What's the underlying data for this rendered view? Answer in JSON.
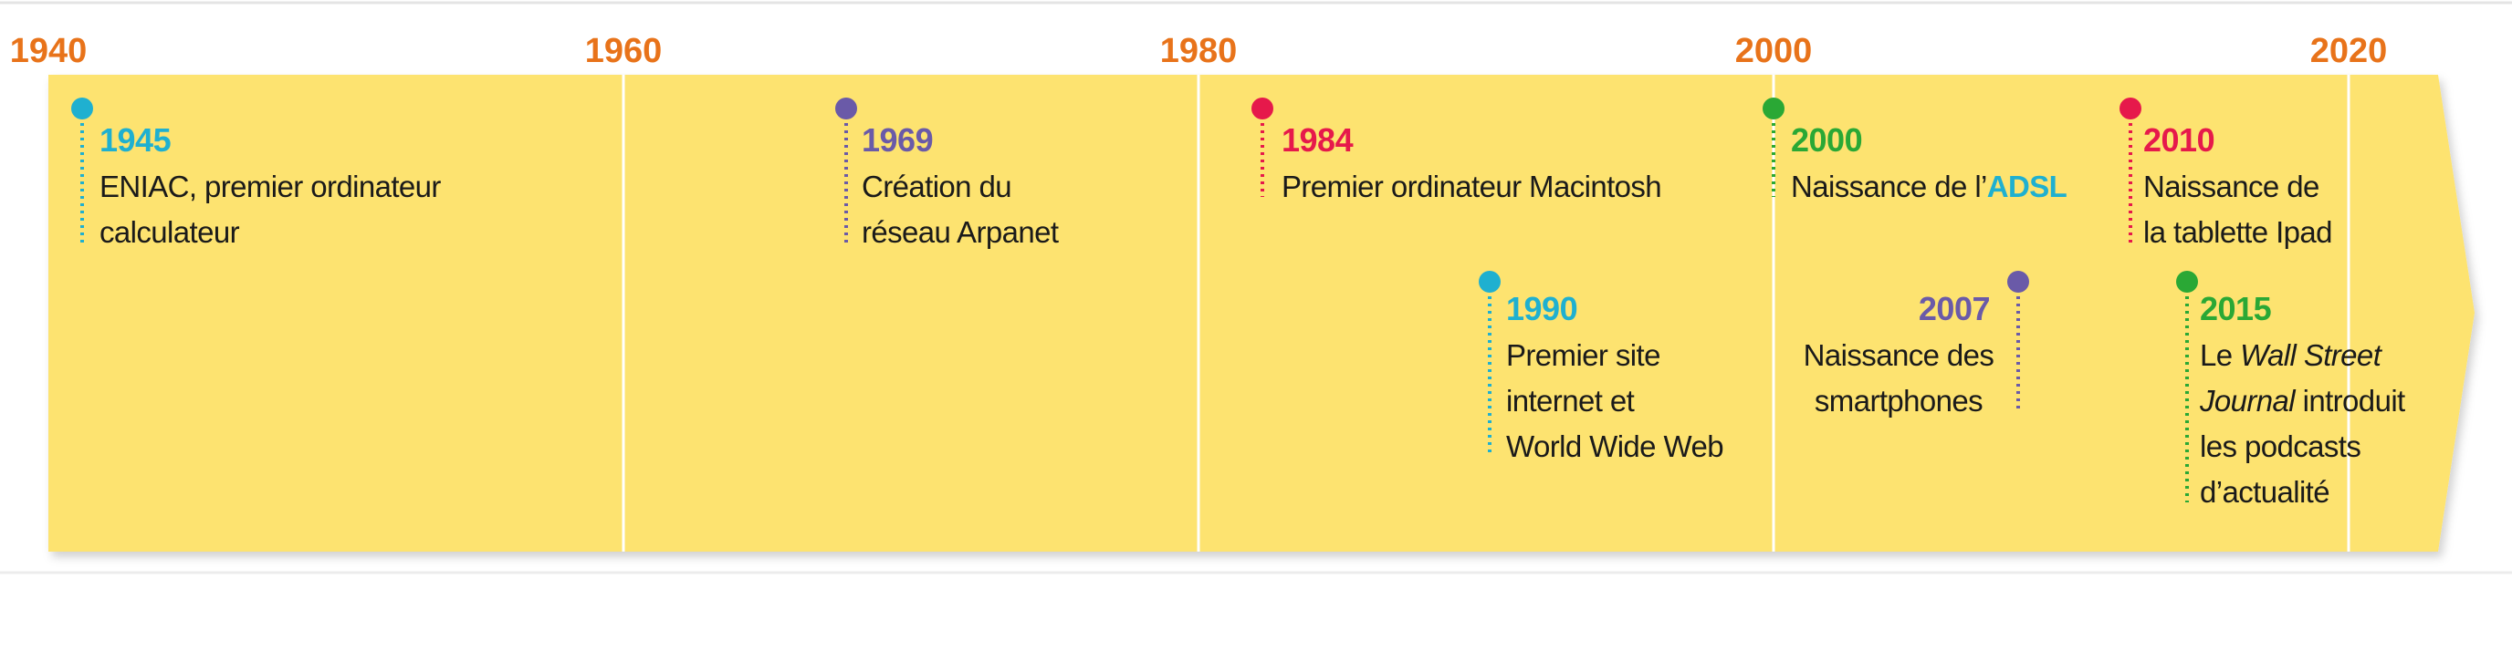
{
  "axis": {
    "years": [
      "1940",
      "1960",
      "1980",
      "2000",
      "2020"
    ]
  },
  "events": [
    {
      "year": "1945",
      "color": "#1fb0d0",
      "lines": [
        [
          {
            "text": "ENIAC, premier ordinateur"
          }
        ],
        [
          {
            "text": "calculateur"
          }
        ]
      ]
    },
    {
      "year": "1969",
      "color": "#6a5aa8",
      "lines": [
        [
          {
            "text": "Création du"
          }
        ],
        [
          {
            "text": "réseau Arpanet"
          }
        ]
      ]
    },
    {
      "year": "1984",
      "color": "#e6194b",
      "lines": [
        [
          {
            "text": "Premier ordinateur Macintosh"
          }
        ]
      ]
    },
    {
      "year": "1990",
      "color": "#1fb0d0",
      "lines": [
        [
          {
            "text": "Premier site"
          }
        ],
        [
          {
            "text": "internet et"
          }
        ],
        [
          {
            "text": "World Wide Web"
          }
        ]
      ]
    },
    {
      "year": "2000",
      "color": "#2aa835",
      "lines": [
        [
          {
            "text": "Naissance de l’"
          },
          {
            "text": "ADSL",
            "color": "#1fb0d0"
          }
        ]
      ]
    },
    {
      "year": "2007",
      "color": "#6a5aa8",
      "lines": [
        [
          {
            "text": "Naissance des"
          }
        ],
        [
          {
            "text": "smartphones"
          }
        ]
      ]
    },
    {
      "year": "2010",
      "color": "#e6194b",
      "lines": [
        [
          {
            "text": "Naissance de"
          }
        ],
        [
          {
            "text": "la tablette Ipad"
          }
        ]
      ]
    },
    {
      "year": "2015",
      "color": "#2aa835",
      "lines": [
        [
          {
            "text": "Le "
          },
          {
            "text": "Wall Street",
            "italic": true
          }
        ],
        [
          {
            "text": "Journal",
            "italic": true
          },
          {
            "text": " introduit"
          }
        ],
        [
          {
            "text": "les podcasts"
          }
        ],
        [
          {
            "text": "d’actualité"
          }
        ]
      ]
    }
  ]
}
